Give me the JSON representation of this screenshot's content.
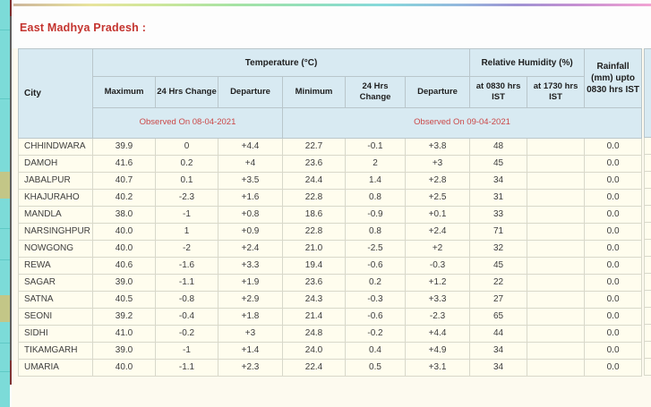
{
  "page": {
    "title": "East Madhya Pradesh :"
  },
  "table": {
    "header": {
      "city": "City",
      "temperature_group": "Temperature (°C)",
      "humidity_group": "Relative Humidity (%)",
      "rainfall": "Rainfall (mm) upto 0830 hrs IST",
      "sub": [
        "Maximum",
        "24 Hrs Change",
        "Departure",
        "Minimum",
        "24 Hrs Change",
        "Departure",
        "at 0830 hrs IST",
        "at 1730 hrs IST"
      ],
      "observed_left": "Observed On 08-04-2021",
      "observed_right": "Observed On 09-04-2021"
    },
    "rows": [
      {
        "city": "CHHINDWARA",
        "values": [
          "39.9",
          "0",
          "+4.4",
          "22.7",
          "-0.1",
          "+3.8",
          "48",
          "",
          "0.0"
        ]
      },
      {
        "city": "DAMOH",
        "values": [
          "41.6",
          "0.2",
          "+4",
          "23.6",
          "2",
          "+3",
          "45",
          "",
          "0.0"
        ]
      },
      {
        "city": "JABALPUR",
        "values": [
          "40.7",
          "0.1",
          "+3.5",
          "24.4",
          "1.4",
          "+2.8",
          "34",
          "",
          "0.0"
        ]
      },
      {
        "city": "KHAJURAHO",
        "values": [
          "40.2",
          "-2.3",
          "+1.6",
          "22.8",
          "0.8",
          "+2.5",
          "31",
          "",
          "0.0"
        ]
      },
      {
        "city": "MANDLA",
        "values": [
          "38.0",
          "-1",
          "+0.8",
          "18.6",
          "-0.9",
          "+0.1",
          "33",
          "",
          "0.0"
        ]
      },
      {
        "city": "NARSINGHPUR",
        "values": [
          "40.0",
          "1",
          "+0.9",
          "22.8",
          "0.8",
          "+2.4",
          "71",
          "",
          "0.0"
        ]
      },
      {
        "city": "NOWGONG",
        "values": [
          "40.0",
          "-2",
          "+2.4",
          "21.0",
          "-2.5",
          "+2",
          "32",
          "",
          "0.0"
        ]
      },
      {
        "city": "REWA",
        "values": [
          "40.6",
          "-1.6",
          "+3.3",
          "19.4",
          "-0.6",
          "-0.3",
          "45",
          "",
          "0.0"
        ]
      },
      {
        "city": "SAGAR",
        "values": [
          "39.0",
          "-1.1",
          "+1.9",
          "23.6",
          "0.2",
          "+1.2",
          "22",
          "",
          "0.0"
        ]
      },
      {
        "city": "SATNA",
        "values": [
          "40.5",
          "-0.8",
          "+2.9",
          "24.3",
          "-0.3",
          "+3.3",
          "27",
          "",
          "0.0"
        ]
      },
      {
        "city": "SEONI",
        "values": [
          "39.2",
          "-0.4",
          "+1.8",
          "21.4",
          "-0.6",
          "-2.3",
          "65",
          "",
          "0.0"
        ]
      },
      {
        "city": "SIDHI",
        "values": [
          "41.0",
          "-0.2",
          "+3",
          "24.8",
          "-0.2",
          "+4.4",
          "44",
          "",
          "0.0"
        ]
      },
      {
        "city": "TIKAMGARH",
        "values": [
          "39.0",
          "-1",
          "+1.4",
          "24.0",
          "0.4",
          "+4.9",
          "34",
          "",
          "0.0"
        ]
      },
      {
        "city": "UMARIA",
        "values": [
          "40.0",
          "-1.1",
          "+2.3",
          "22.4",
          "0.5",
          "+3.1",
          "34",
          "",
          "0.0"
        ]
      }
    ]
  },
  "colors": {
    "title_red": "#c4342f",
    "observed_red": "#cb4848",
    "header_blue": "#d8eaf2",
    "row_cream": "#fffdee",
    "page_cream": "#fdfaef",
    "sidebar_teal": "#7cdbd8",
    "sidebar_olive": "#c3c687"
  }
}
